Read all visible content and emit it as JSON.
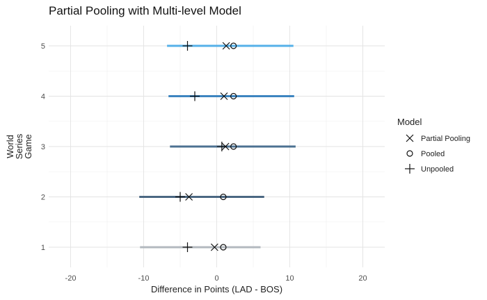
{
  "title": "Partial Pooling with Multi-level Model",
  "chart_data": {
    "type": "scatter",
    "title": "Partial Pooling with Multi-level Model",
    "xlabel": "Difference in Points (LAD - BOS)",
    "ylabel_lines": [
      "World",
      "Series",
      "Game"
    ],
    "xlim": [
      -23,
      23
    ],
    "ylim": [
      0.6,
      5.4
    ],
    "x_ticks": [
      -20,
      -10,
      0,
      10,
      20
    ],
    "y_ticks": [
      1,
      2,
      3,
      4,
      5
    ],
    "grid": true,
    "legend_title": "Model",
    "legend_position": "right",
    "intervals": [
      {
        "game": 1,
        "low": -10.5,
        "high": 6.0,
        "color": "#b3b9bf"
      },
      {
        "game": 2,
        "low": -10.6,
        "high": 6.5,
        "color": "#4a6782"
      },
      {
        "game": 3,
        "low": -6.4,
        "high": 10.8,
        "color": "#4c7191"
      },
      {
        "game": 4,
        "low": -6.6,
        "high": 10.6,
        "color": "#3d85c0"
      },
      {
        "game": 5,
        "low": -6.8,
        "high": 10.5,
        "color": "#55b0e8"
      }
    ],
    "series": [
      {
        "name": "Partial Pooling",
        "marker": "x",
        "points": [
          {
            "x": -0.3,
            "y": 1
          },
          {
            "x": -3.8,
            "y": 2
          },
          {
            "x": 1.2,
            "y": 3
          },
          {
            "x": 1.0,
            "y": 4
          },
          {
            "x": 1.3,
            "y": 5
          }
        ]
      },
      {
        "name": "Pooled",
        "marker": "circle",
        "points": [
          {
            "x": 0.9,
            "y": 1
          },
          {
            "x": 0.9,
            "y": 2
          },
          {
            "x": 2.3,
            "y": 3
          },
          {
            "x": 2.3,
            "y": 4
          },
          {
            "x": 2.3,
            "y": 5
          }
        ]
      },
      {
        "name": "Unpooled",
        "marker": "plus",
        "points": [
          {
            "x": -4.0,
            "y": 1
          },
          {
            "x": -5.0,
            "y": 2
          },
          {
            "x": 0.7,
            "y": 3
          },
          {
            "x": -3.0,
            "y": 4
          },
          {
            "x": -4.0,
            "y": 5
          }
        ]
      }
    ]
  }
}
